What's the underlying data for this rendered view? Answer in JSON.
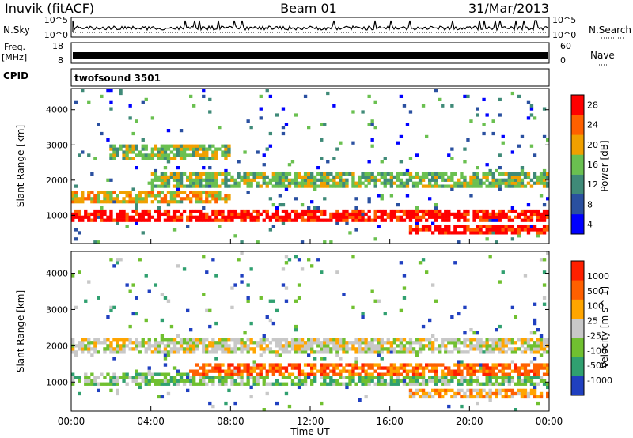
{
  "header": {
    "station": "Inuvik (fitACF)",
    "beam": "Beam 01",
    "date": "31/Mar/2013"
  },
  "left_labels": {
    "nsky": "N.Sky",
    "freq_line1": "Freq.",
    "freq_line2": "[MHz]",
    "cpid": "CPID"
  },
  "right_labels": {
    "nsearch": "N.Search",
    "nave": "Nave"
  },
  "strip_axes": {
    "nsky_ticks": [
      "10^5",
      "10^0"
    ],
    "nsearch_ticks": [
      "10^5",
      "10^0"
    ],
    "freq_ticks": [
      "18",
      "8"
    ],
    "nave_ticks": [
      "60",
      "0"
    ]
  },
  "cpid_text": "twofsound 3501",
  "chart_data": [
    {
      "type": "heatmap",
      "name": "power",
      "ylabel": "Slant Range [km]",
      "xlabel": "Time UT",
      "xlim": [
        0,
        24
      ],
      "ylim": [
        200,
        4600
      ],
      "yticks": [
        1000,
        2000,
        3000,
        4000
      ],
      "x_tick_labels": [
        "00:00",
        "04:00",
        "08:00",
        "12:00",
        "16:00",
        "20:00",
        "00:00"
      ],
      "colorbar": {
        "label": "Power [dB]",
        "ticks": [
          "4",
          "8",
          "12",
          "16",
          "20",
          "24",
          "28"
        ],
        "colors": [
          "#0000ff",
          "#2a50a0",
          "#3f8a78",
          "#6ac050",
          "#f0a000",
          "#ff6000",
          "#ff0000"
        ]
      },
      "bands": [
        {
          "t0": 0,
          "t1": 24,
          "r_center": 1000,
          "r_half": 180,
          "level": 6
        },
        {
          "t0": 0,
          "t1": 8,
          "r_center": 1500,
          "r_half": 200,
          "level": 4
        },
        {
          "t0": 4,
          "t1": 24,
          "r_center": 2000,
          "r_half": 220,
          "level": 3
        },
        {
          "t0": 17,
          "t1": 24,
          "r_center": 600,
          "r_half": 150,
          "level": 6
        },
        {
          "t0": 2,
          "t1": 8,
          "r_center": 2800,
          "r_half": 250,
          "level": 3
        }
      ]
    },
    {
      "type": "heatmap",
      "name": "velocity",
      "ylabel": "Slant Range [km]",
      "xlabel": "Time UT",
      "xlim": [
        0,
        24
      ],
      "ylim": [
        200,
        4600
      ],
      "yticks": [
        1000,
        2000,
        3000,
        4000
      ],
      "colorbar": {
        "label": "Velocity [m s^-1]",
        "ticks": [
          "1000",
          "500",
          "100",
          "25",
          "-25",
          "-100",
          "-500",
          "-1000"
        ],
        "colors": [
          "#2040c0",
          "#30a070",
          "#70c030",
          "#c8c8c8",
          "#ffa500",
          "#ff6000",
          "#ff2000"
        ]
      },
      "bands": [
        {
          "t0": 0,
          "t1": 24,
          "r_center": 2000,
          "r_half": 250,
          "level": 3
        },
        {
          "t0": 0,
          "t1": 24,
          "r_center": 1100,
          "r_half": 200,
          "level": 2
        },
        {
          "t0": 6,
          "t1": 24,
          "r_center": 1200,
          "r_half": 300,
          "level": 5
        },
        {
          "t0": 17,
          "t1": 24,
          "r_center": 700,
          "r_half": 150,
          "level": 4
        }
      ]
    }
  ]
}
